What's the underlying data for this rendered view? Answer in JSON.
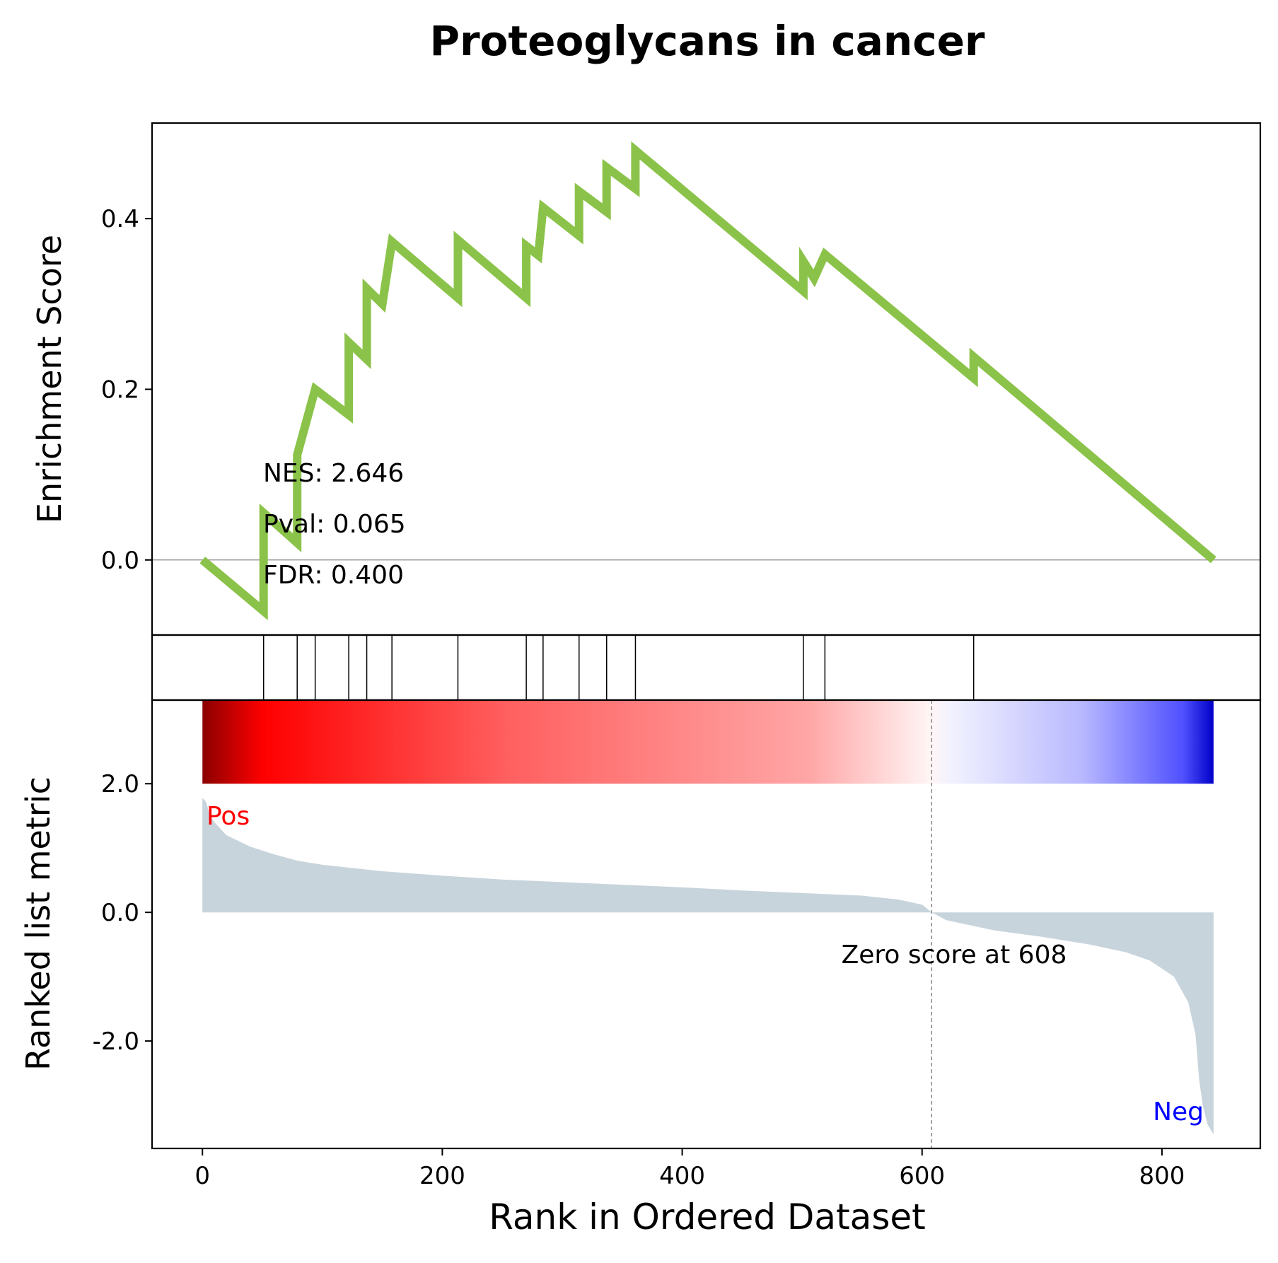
{
  "chart_data": {
    "type": "line",
    "title": "Proteoglycans in cancer",
    "xlabel": "Rank in Ordered Dataset",
    "es_ylabel": "Enrichment Score",
    "rank_ylabel": "Ranked list metric",
    "xlim": [
      -42,
      882
    ],
    "es_ylim": [
      -0.088,
      0.512
    ],
    "rank_ylim": [
      -3.67,
      3.3
    ],
    "x_ticks": [
      "0",
      "200",
      "400",
      "600",
      "800"
    ],
    "x_tick_values": [
      0,
      200,
      400,
      600,
      800
    ],
    "es_ticks": [
      "0.0",
      "0.2",
      "0.4"
    ],
    "es_tick_values": [
      0.0,
      0.2,
      0.4
    ],
    "rank_ticks": [
      "2.0",
      "0.0",
      "-2.0"
    ],
    "rank_tick_values": [
      2.0,
      0.0,
      -2.0
    ],
    "stats": {
      "nes": "NES: 2.646",
      "pval": "Pval: 0.065",
      "fdr": "FDR: 0.400"
    },
    "hit_ranks": [
      51,
      79,
      94,
      122,
      137,
      158,
      213,
      270,
      284,
      314,
      337,
      361,
      501,
      519,
      643
    ],
    "es_curve": [
      [
        0,
        0.0
      ],
      [
        51,
        -0.06
      ],
      [
        51,
        0.055
      ],
      [
        79,
        0.02
      ],
      [
        79,
        0.123
      ],
      [
        94,
        0.2
      ],
      [
        122,
        0.17
      ],
      [
        122,
        0.255
      ],
      [
        137,
        0.235
      ],
      [
        137,
        0.318
      ],
      [
        150,
        0.3
      ],
      [
        158,
        0.373
      ],
      [
        213,
        0.307
      ],
      [
        213,
        0.375
      ],
      [
        270,
        0.307
      ],
      [
        270,
        0.368
      ],
      [
        280,
        0.357
      ],
      [
        284,
        0.413
      ],
      [
        314,
        0.38
      ],
      [
        314,
        0.432
      ],
      [
        337,
        0.408
      ],
      [
        337,
        0.46
      ],
      [
        361,
        0.435
      ],
      [
        361,
        0.48
      ],
      [
        501,
        0.315
      ],
      [
        501,
        0.35
      ],
      [
        510,
        0.33
      ],
      [
        519,
        0.358
      ],
      [
        643,
        0.213
      ],
      [
        643,
        0.238
      ],
      [
        843,
        0.0
      ]
    ],
    "zero_cross": 608,
    "zero_label": "Zero score at 608",
    "pos_label": "Pos",
    "neg_label": "Neg",
    "n_genes": 843,
    "rank_metric_curve": [
      [
        0,
        1.78
      ],
      [
        3,
        1.72
      ],
      [
        6,
        1.52
      ],
      [
        10,
        1.4
      ],
      [
        20,
        1.2
      ],
      [
        40,
        1.02
      ],
      [
        60,
        0.9
      ],
      [
        80,
        0.8
      ],
      [
        100,
        0.74
      ],
      [
        150,
        0.64
      ],
      [
        200,
        0.57
      ],
      [
        250,
        0.51
      ],
      [
        300,
        0.47
      ],
      [
        350,
        0.43
      ],
      [
        400,
        0.39
      ],
      [
        450,
        0.34
      ],
      [
        500,
        0.3
      ],
      [
        550,
        0.26
      ],
      [
        580,
        0.2
      ],
      [
        600,
        0.12
      ],
      [
        608,
        0.0
      ],
      [
        620,
        -0.12
      ],
      [
        660,
        -0.28
      ],
      [
        700,
        -0.38
      ],
      [
        740,
        -0.5
      ],
      [
        770,
        -0.62
      ],
      [
        790,
        -0.75
      ],
      [
        810,
        -1.0
      ],
      [
        822,
        -1.4
      ],
      [
        828,
        -1.9
      ],
      [
        831,
        -2.6
      ],
      [
        834,
        -3.0
      ],
      [
        838,
        -3.3
      ],
      [
        843,
        -3.45
      ]
    ],
    "colors": {
      "es_line": "#8bc34a",
      "metric_fill": "#c8d4dc",
      "pos_label": "#ff0000",
      "neg_label": "#0000ff",
      "zero_line": "#808080"
    },
    "colorbar_stops": [
      {
        "offset": 0.0,
        "color": "#8b0000"
      },
      {
        "offset": 0.06,
        "color": "#ff0000"
      },
      {
        "offset": 0.3,
        "color": "#ff5f5f"
      },
      {
        "offset": 0.6,
        "color": "#ffa6a6"
      },
      {
        "offset": 0.72,
        "color": "#fff5f5"
      },
      {
        "offset": 0.74,
        "color": "#f2f2ff"
      },
      {
        "offset": 0.87,
        "color": "#b8b8ff"
      },
      {
        "offset": 0.97,
        "color": "#5050ff"
      },
      {
        "offset": 1.0,
        "color": "#0000c8"
      }
    ]
  }
}
